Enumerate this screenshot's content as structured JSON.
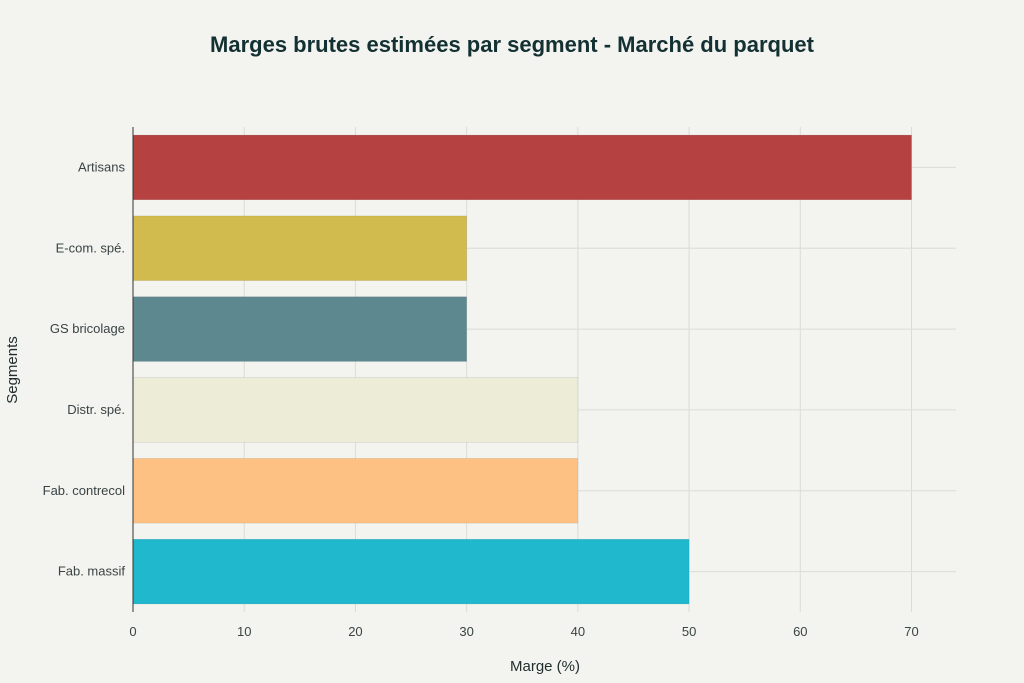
{
  "chart_data": {
    "type": "bar",
    "orientation": "horizontal",
    "title": "Marges brutes estimées par segment - Marché du parquet",
    "xlabel": "Marge (%)",
    "ylabel": "Segments",
    "categories": [
      "Artisans",
      "E-com. spé.",
      "GS bricolage",
      "Distr. spé.",
      "Fab. contrecol",
      "Fab. massif"
    ],
    "values": [
      70,
      30,
      30,
      40,
      40,
      50
    ],
    "colors": [
      "#b54240",
      "#d2bb4e",
      "#5e8890",
      "#ececd7",
      "#fec184",
      "#1fb8cd"
    ],
    "x_ticks": [
      0,
      10,
      20,
      30,
      40,
      50,
      60,
      70
    ],
    "xlim": [
      0,
      74
    ],
    "grid": true,
    "legend": "none"
  }
}
